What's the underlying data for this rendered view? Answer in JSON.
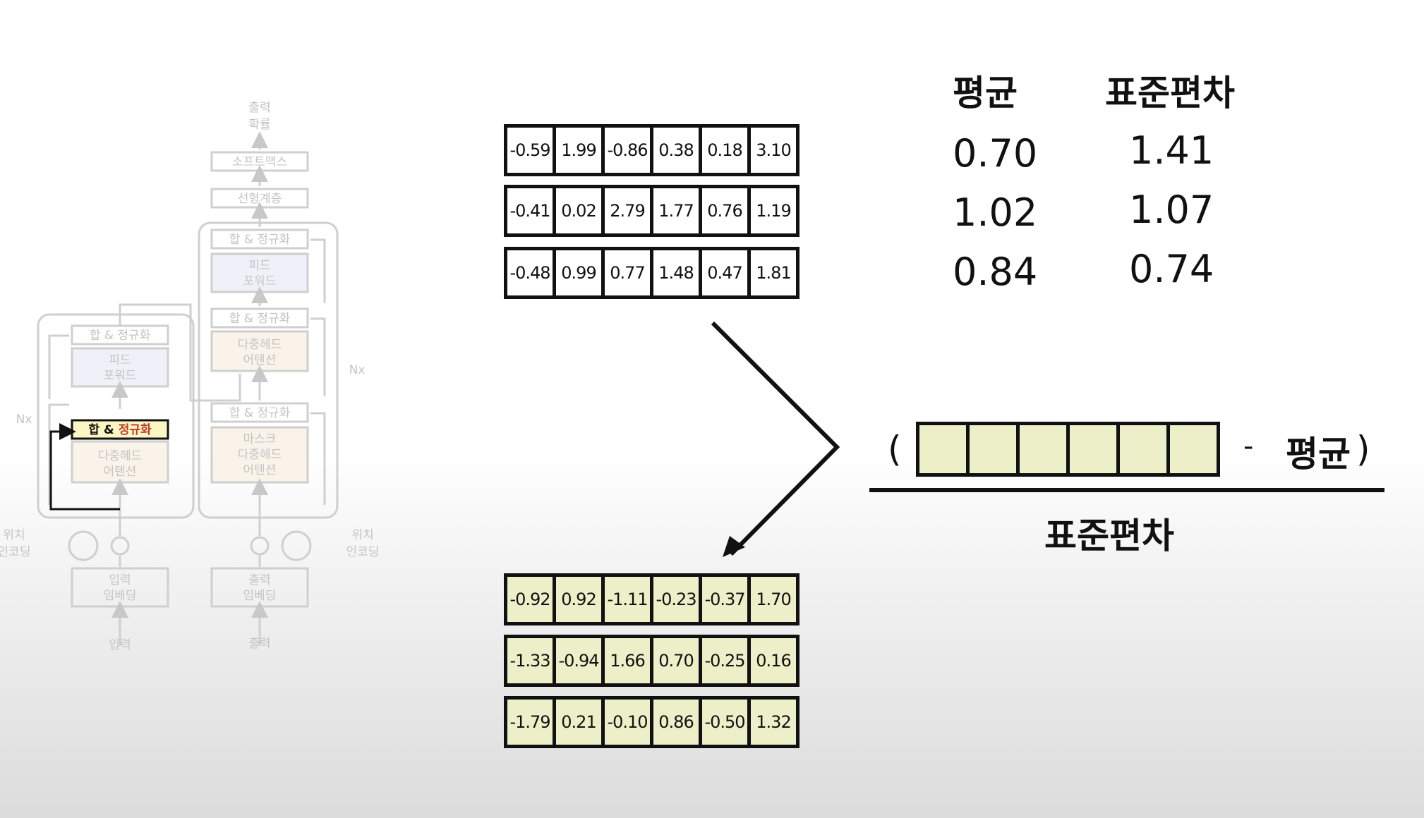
{
  "architecture": {
    "output_prob": [
      "출력",
      "확률"
    ],
    "softmax": "소프트맥스",
    "linear": "선형계층",
    "add_norm": "합 & 정규화",
    "add_norm_parts": [
      "합 & ",
      "정규화"
    ],
    "feed_forward": [
      "피드",
      "포워드"
    ],
    "multihead_attention": [
      "다중헤드",
      "어텐션"
    ],
    "masked_multihead_attention": [
      "마스크",
      "다중헤드",
      "어텐션"
    ],
    "positional_encoding": [
      "위치",
      "인코딩"
    ],
    "input_embedding": [
      "입력",
      "임베딩"
    ],
    "output_embedding": [
      "출력",
      "임베딩"
    ],
    "input": "입력",
    "output": "출력",
    "nx": "Nx",
    "highlight_color": "#c0392b",
    "highlight_fill": "#fbf6c4"
  },
  "input_rows": [
    [
      "-0.59",
      "1.99",
      "-0.86",
      "0.38",
      "0.18",
      "3.10"
    ],
    [
      "-0.41",
      "0.02",
      "2.79",
      "1.77",
      "0.76",
      "1.19"
    ],
    [
      "-0.48",
      "0.99",
      "0.77",
      "1.48",
      "0.47",
      "1.81"
    ]
  ],
  "output_rows": [
    [
      "-0.92",
      "0.92",
      "-1.11",
      "-0.23",
      "-0.37",
      "1.70"
    ],
    [
      "-1.33",
      "-0.94",
      "1.66",
      "0.70",
      "-0.25",
      "0.16"
    ],
    [
      "-1.79",
      "0.21",
      "-0.10",
      "0.86",
      "-0.50",
      "1.32"
    ]
  ],
  "stats": {
    "mean_label": "평균",
    "std_label": "표준편차",
    "means": [
      "0.70",
      "1.02",
      "0.84"
    ],
    "stds": [
      "1.41",
      "1.07",
      "0.74"
    ]
  },
  "formula": {
    "open_paren": "(",
    "minus": "-",
    "mean": "평균",
    "close_paren": ")",
    "denominator": "표준편차"
  },
  "colors": {
    "normalized_fill": "#ecefc8",
    "faded_diagram": "#bdbdbd"
  }
}
